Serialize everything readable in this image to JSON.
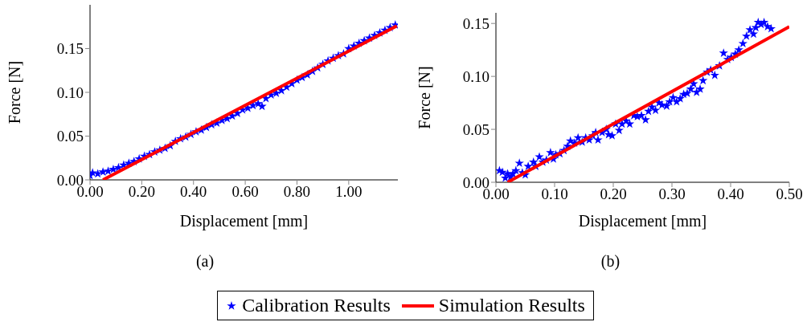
{
  "chart_data": [
    {
      "type": "scatter",
      "xlabel": "Displacement [mm]",
      "ylabel": "Force [N]",
      "annotations": [
        "(a)"
      ],
      "xlim": [
        0,
        1.19
      ],
      "ylim": [
        0,
        0.2
      ],
      "xticks": [
        {
          "value": 0,
          "label": "0.00"
        },
        {
          "value": 0.2,
          "label": "0.20"
        },
        {
          "value": 0.4,
          "label": "0.40"
        },
        {
          "value": 0.6,
          "label": "0.60"
        },
        {
          "value": 0.8,
          "label": "0.80"
        },
        {
          "value": 1,
          "label": "1.00"
        }
      ],
      "yticks": [
        {
          "value": 0,
          "label": "0.00"
        },
        {
          "value": 0.05,
          "label": "0.05"
        },
        {
          "value": 0.1,
          "label": "0.10"
        },
        {
          "value": 0.15,
          "label": "0.15"
        }
      ],
      "legend": "bottom",
      "grid": false,
      "series": [
        {
          "name": "Calibration Results",
          "marker": "star",
          "color": "#0000ff",
          "x": [
            0,
            0.01,
            0.03,
            0.05,
            0.07,
            0.09,
            0.11,
            0.13,
            0.15,
            0.17,
            0.19,
            0.21,
            0.23,
            0.25,
            0.27,
            0.29,
            0.31,
            0.33,
            0.35,
            0.37,
            0.39,
            0.41,
            0.43,
            0.45,
            0.47,
            0.49,
            0.51,
            0.53,
            0.55,
            0.57,
            0.59,
            0.61,
            0.63,
            0.65,
            0.665,
            0.68,
            0.7,
            0.72,
            0.74,
            0.76,
            0.78,
            0.8,
            0.82,
            0.84,
            0.86,
            0.88,
            0.9,
            0.92,
            0.94,
            0.96,
            0.98,
            1,
            1.02,
            1.04,
            1.06,
            1.08,
            1.1,
            1.12,
            1.14,
            1.16,
            1.18
          ],
          "values": [
            0.005,
            0.008,
            0.007,
            0.009,
            0.01,
            0.012,
            0.014,
            0.017,
            0.019,
            0.021,
            0.024,
            0.027,
            0.029,
            0.032,
            0.034,
            0.036,
            0.039,
            0.044,
            0.047,
            0.049,
            0.052,
            0.055,
            0.057,
            0.06,
            0.063,
            0.065,
            0.068,
            0.07,
            0.073,
            0.076,
            0.08,
            0.082,
            0.085,
            0.087,
            0.084,
            0.093,
            0.097,
            0.099,
            0.102,
            0.106,
            0.11,
            0.114,
            0.117,
            0.12,
            0.124,
            0.128,
            0.132,
            0.136,
            0.139,
            0.142,
            0.144,
            0.15,
            0.153,
            0.156,
            0.159,
            0.162,
            0.165,
            0.168,
            0.171,
            0.174,
            0.177
          ]
        },
        {
          "name": "Simulation Results",
          "type": "line",
          "marker": "none",
          "color": "#ff0000",
          "x": [
            0.05,
            1.186
          ],
          "values": [
            0,
            0.176
          ]
        }
      ]
    },
    {
      "type": "scatter",
      "xlabel": "Displacement [mm]",
      "ylabel": "Force [N]",
      "annotations": [
        "(b)"
      ],
      "xlim": [
        0,
        0.5
      ],
      "ylim": [
        0,
        0.16
      ],
      "xticks": [
        {
          "value": 0,
          "label": "0.00"
        },
        {
          "value": 0.1,
          "label": "0.10"
        },
        {
          "value": 0.2,
          "label": "0.20"
        },
        {
          "value": 0.3,
          "label": "0.30"
        },
        {
          "value": 0.4,
          "label": "0.40"
        },
        {
          "value": 0.5,
          "label": "0.50"
        }
      ],
      "yticks": [
        {
          "value": 0,
          "label": "0.00"
        },
        {
          "value": 0.05,
          "label": "0.05"
        },
        {
          "value": 0.1,
          "label": "0.10"
        },
        {
          "value": 0.15,
          "label": "0.15"
        }
      ],
      "grid": false,
      "series": [
        {
          "marker": "star",
          "color": "#0000ff",
          "x": [
            0.006,
            0.011,
            0.016,
            0.02,
            0.025,
            0.029,
            0.034,
            0.04,
            0.045,
            0.05,
            0.055,
            0.064,
            0.068,
            0.074,
            0.08,
            0.086,
            0.093,
            0.098,
            0.102,
            0.109,
            0.116,
            0.122,
            0.127,
            0.134,
            0.14,
            0.147,
            0.153,
            0.159,
            0.165,
            0.17,
            0.174,
            0.181,
            0.188,
            0.192,
            0.198,
            0.204,
            0.21,
            0.215,
            0.222,
            0.228,
            0.235,
            0.241,
            0.248,
            0.255,
            0.26,
            0.266,
            0.272,
            0.278,
            0.283,
            0.291,
            0.296,
            0.302,
            0.308,
            0.314,
            0.32,
            0.326,
            0.332,
            0.337,
            0.342,
            0.348,
            0.353,
            0.36,
            0.366,
            0.373,
            0.381,
            0.388,
            0.395,
            0.401,
            0.408,
            0.414,
            0.421,
            0.427,
            0.433,
            0.439,
            0.443,
            0.447,
            0.452,
            0.457,
            0.463,
            0.469
          ],
          "values": [
            0.011,
            0.0095,
            0.004,
            0.008,
            0.005,
            0.008,
            0.011,
            0.018,
            0.009,
            0.007,
            0.015,
            0.019,
            0.015,
            0.024,
            0.019,
            0.021,
            0.028,
            0.022,
            0.026,
            0.027,
            0.03,
            0.034,
            0.039,
            0.037,
            0.042,
            0.038,
            0.042,
            0.04,
            0.044,
            0.047,
            0.04,
            0.047,
            0.05,
            0.045,
            0.044,
            0.055,
            0.049,
            0.055,
            0.058,
            0.055,
            0.063,
            0.062,
            0.063,
            0.059,
            0.067,
            0.071,
            0.068,
            0.075,
            0.073,
            0.072,
            0.076,
            0.08,
            0.076,
            0.079,
            0.083,
            0.084,
            0.088,
            0.093,
            0.085,
            0.088,
            0.096,
            0.104,
            0.106,
            0.101,
            0.11,
            0.122,
            0.116,
            0.118,
            0.121,
            0.125,
            0.131,
            0.138,
            0.144,
            0.14,
            0.146,
            0.151,
            0.149,
            0.151,
            0.147,
            0.145
          ]
        },
        {
          "type": "line",
          "marker": "none",
          "color": "#ff0000",
          "x": [
            0.02,
            0.5
          ],
          "values": [
            0,
            0.147
          ]
        }
      ]
    }
  ]
}
